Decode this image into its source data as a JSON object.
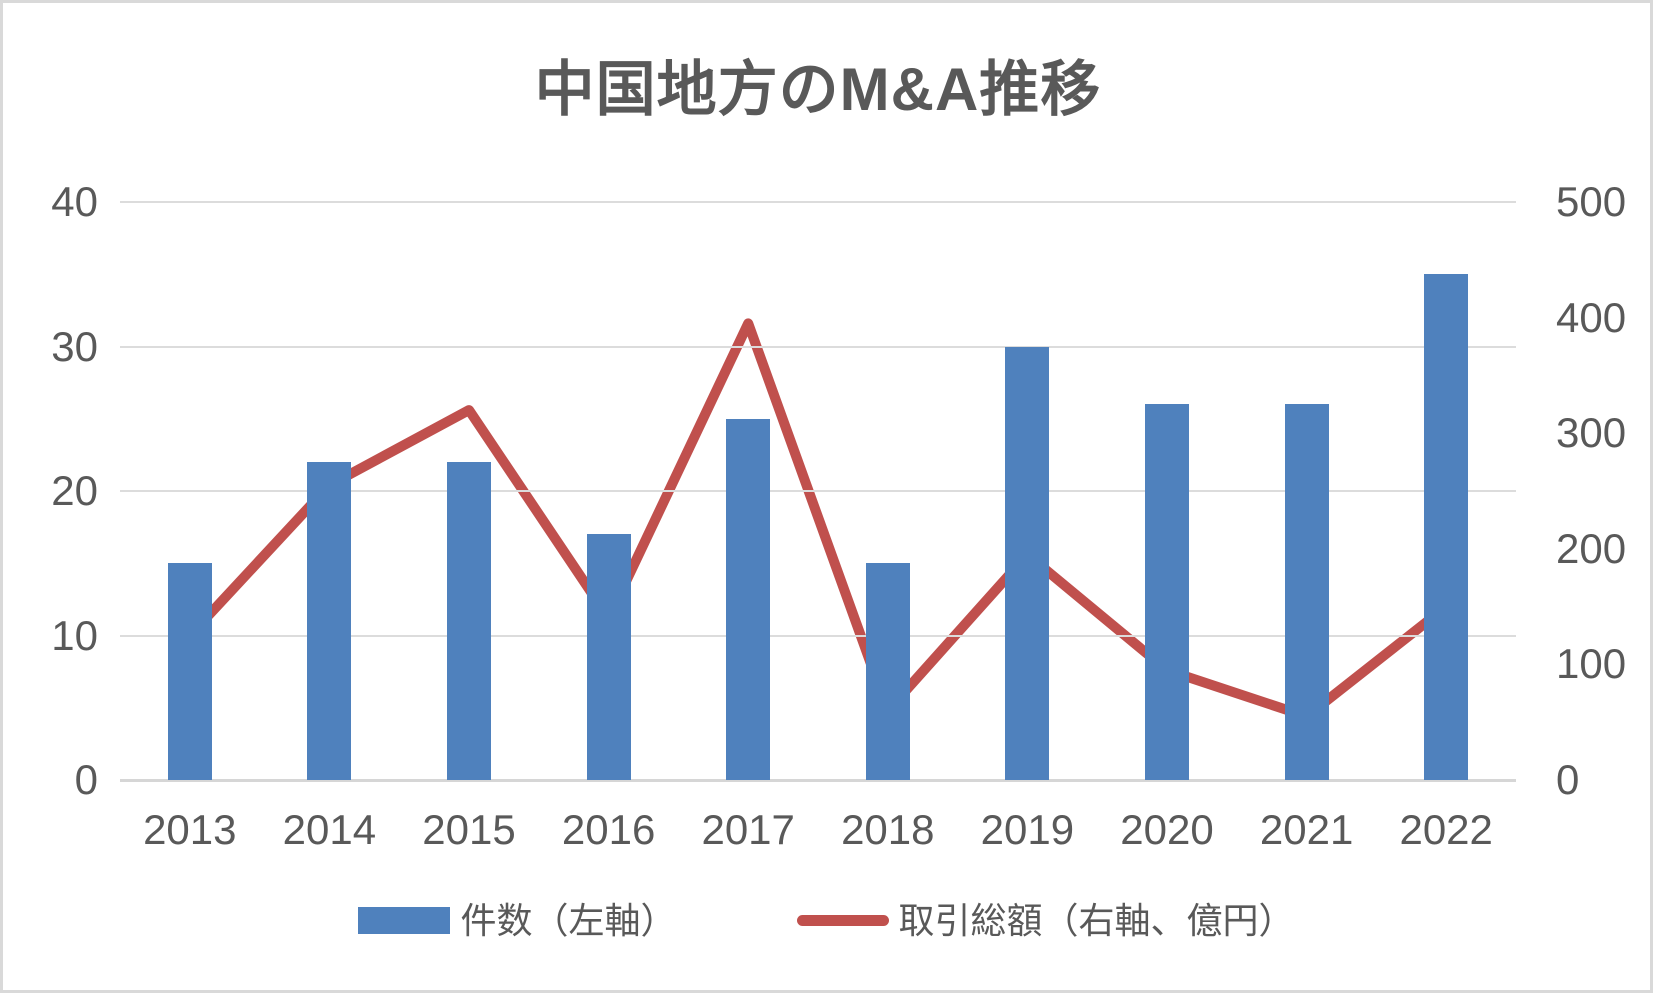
{
  "chart_data": {
    "type": "combo-bar-line",
    "title": "中国地方のM&A推移",
    "categories": [
      "2013",
      "2014",
      "2015",
      "2016",
      "2017",
      "2018",
      "2019",
      "2020",
      "2021",
      "2022"
    ],
    "series": [
      {
        "name": "件数（左軸）",
        "type": "bar",
        "axis": "left",
        "color": "#4F81BD",
        "values": [
          15,
          22,
          22,
          17,
          25,
          15,
          30,
          26,
          26,
          35
        ]
      },
      {
        "name": "取引総額（右軸、億円）",
        "type": "line",
        "axis": "right",
        "color": "#C0504D",
        "values": [
          125,
          255,
          320,
          140,
          395,
          60,
          195,
          95,
          55,
          150
        ]
      }
    ],
    "left_axis": {
      "min": 0,
      "max": 40,
      "ticks": [
        0,
        10,
        20,
        30,
        40
      ]
    },
    "right_axis": {
      "min": 0,
      "max": 500,
      "ticks": [
        0,
        100,
        200,
        300,
        400,
        500
      ]
    },
    "grid": "horizontal",
    "legend_position": "bottom",
    "colors": {
      "text": "#595959",
      "gridline": "#DCDCDC",
      "baseline": "#D6D6D6",
      "background": "#FFFFFF",
      "border": "#D9D9D9"
    }
  }
}
